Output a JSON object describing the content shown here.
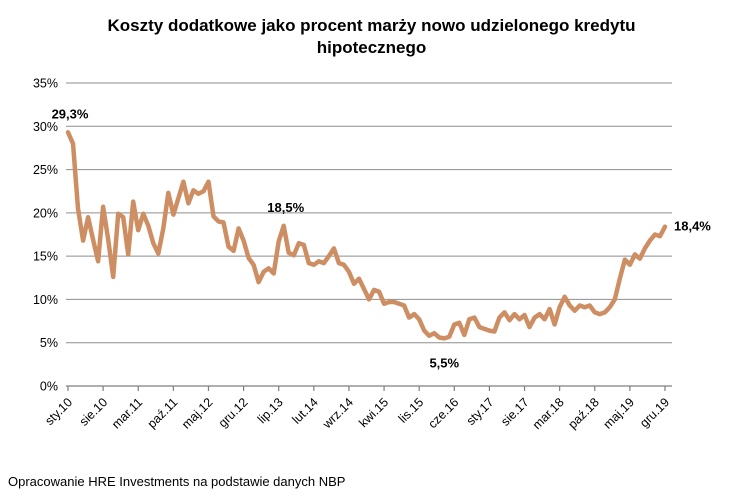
{
  "title": {
    "line1": "Koszty dodatkowe jako procent marży nowo udzielonego kredytu",
    "line2": "hipotecznego"
  },
  "footer": "Opracowanie HRE Investments na podstawie danych NBP",
  "colors": {
    "line": "#CE8E63",
    "grid": "#8E8E8E",
    "axis": "#7F7F7F",
    "text": "#000000",
    "background": "#FFFFFF"
  },
  "chart_data": {
    "type": "line",
    "title": "Koszty dodatkowe jako procent marży nowo udzielonego kredytu hipotecznego",
    "xlabel": "",
    "ylabel": "",
    "ylim": [
      0,
      35
    ],
    "y_ticks": [
      0,
      5,
      10,
      15,
      20,
      25,
      30,
      35
    ],
    "y_tick_suffix": "%",
    "grid": "horizontal",
    "legend": "none",
    "x_tick_labels": [
      "sty.10",
      "sie.10",
      "mar.11",
      "paź.11",
      "maj.12",
      "gru.12",
      "lip.13",
      "lut.14",
      "wrz.14",
      "kwi.15",
      "lis.15",
      "cze.16",
      "sty.17",
      "sie.17",
      "mar.18",
      "paź.18",
      "maj.19",
      "gru.19"
    ],
    "x_tick_step_months": 7,
    "values": [
      29.3,
      28.0,
      20.5,
      16.8,
      19.5,
      16.9,
      14.4,
      20.7,
      17.0,
      12.6,
      19.9,
      19.5,
      15.2,
      21.3,
      18.0,
      19.9,
      18.5,
      16.5,
      15.3,
      18.2,
      22.3,
      19.8,
      21.7,
      23.6,
      21.1,
      22.6,
      22.2,
      22.5,
      23.6,
      19.6,
      19.0,
      18.9,
      16.1,
      15.6,
      18.2,
      16.8,
      14.8,
      14.0,
      12.0,
      13.2,
      13.6,
      13.0,
      16.7,
      18.5,
      15.4,
      15.1,
      16.5,
      16.3,
      14.2,
      14.0,
      14.4,
      14.2,
      15.0,
      15.9,
      14.2,
      14.0,
      13.2,
      11.8,
      12.4,
      11.2,
      10.0,
      11.1,
      10.9,
      9.5,
      9.7,
      9.7,
      9.5,
      9.3,
      7.9,
      8.3,
      7.7,
      6.4,
      5.8,
      6.1,
      5.6,
      5.5,
      5.7,
      7.1,
      7.3,
      5.9,
      7.7,
      7.9,
      6.8,
      6.6,
      6.4,
      6.3,
      7.9,
      8.5,
      7.6,
      8.3,
      7.7,
      8.2,
      6.8,
      7.9,
      8.3,
      7.7,
      8.9,
      7.1,
      9.1,
      10.3,
      9.3,
      8.7,
      9.3,
      9.1,
      9.3,
      8.5,
      8.3,
      8.5,
      9.1,
      10.0,
      12.4,
      14.6,
      14.0,
      15.2,
      14.7,
      15.9,
      16.8,
      17.5,
      17.3,
      18.4
    ],
    "annotations": [
      {
        "text": "29,3%",
        "index": 0,
        "value": 29.3,
        "anchor": "above"
      },
      {
        "text": "18,5%",
        "index": 43,
        "value": 18.5,
        "anchor": "above"
      },
      {
        "text": "5,5%",
        "index": 75,
        "value": 5.5,
        "anchor": "below"
      },
      {
        "text": "18,4%",
        "index": 119,
        "value": 18.4,
        "anchor": "right"
      }
    ]
  }
}
